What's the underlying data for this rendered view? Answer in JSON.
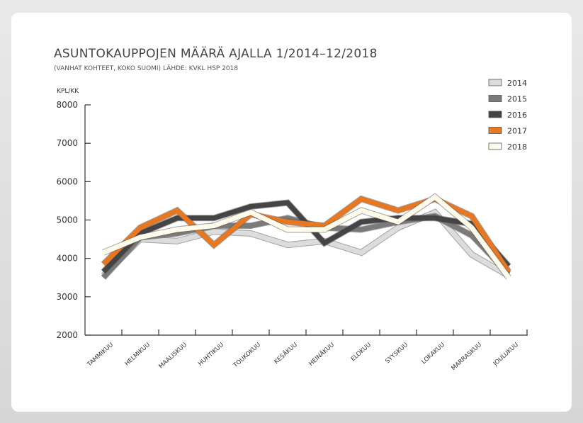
{
  "title": "ASUNTOKAUPPOJEN MÄÄRÄ AJALLA 1/2014–12/2018",
  "subtitle": "(VANHAT KOHTEET, KOKO SUOMI) LÄHDE: KVKL HSP 2018",
  "chart_data": {
    "type": "line",
    "title": "ASUNTOKAUPPOJEN MÄÄRÄ AJALLA 1/2014–12/2018",
    "subtitle": "(VANHAT KOHTEET, KOKO SUOMI) LÄHDE: KVKL HSP 2018",
    "ylabel": "KPL/KK",
    "xlabel": "",
    "ylim": [
      2000,
      8000
    ],
    "yticks": [
      2000,
      3000,
      4000,
      5000,
      6000,
      7000,
      8000
    ],
    "categories": [
      "TAMMIKUU",
      "HELMIKUU",
      "MAALISKUU",
      "HUHTIKUU",
      "TOUKOKUU",
      "KESÄKUU",
      "HEINÄKUU",
      "ELOKUU",
      "SYYSKUU",
      "LOKAKUU",
      "MARRASKUU",
      "JOULUKUU"
    ],
    "legend_position": "top-right",
    "grid": false,
    "series": [
      {
        "name": "2014",
        "color": "#dcdcdc",
        "values": [
          3550,
          4500,
          4450,
          4700,
          4650,
          4350,
          4450,
          4150,
          4800,
          5200,
          4100,
          3550
        ]
      },
      {
        "name": "2015",
        "color": "#7a7a7a",
        "values": [
          3500,
          4550,
          4650,
          4850,
          4850,
          5050,
          4800,
          4750,
          4950,
          5100,
          4600,
          3600
        ]
      },
      {
        "name": "2016",
        "color": "#444444",
        "values": [
          3650,
          4650,
          5050,
          5050,
          5350,
          5450,
          4400,
          4950,
          5050,
          5050,
          4900,
          3800
        ]
      },
      {
        "name": "2017",
        "color": "#e87722",
        "values": [
          3850,
          4800,
          5250,
          4350,
          5150,
          4950,
          4850,
          5550,
          5250,
          5550,
          5100,
          3650
        ]
      },
      {
        "name": "2018",
        "color": "#fffbea",
        "values": [
          4150,
          4550,
          4750,
          4850,
          5200,
          4750,
          4750,
          5250,
          4950,
          5600,
          4800,
          3500
        ]
      }
    ]
  }
}
